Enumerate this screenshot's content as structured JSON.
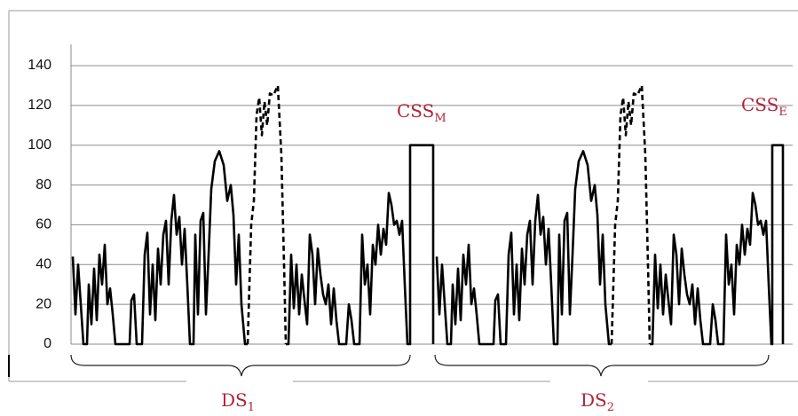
{
  "chart_data": {
    "type": "line",
    "ylim": [
      0,
      140
    ],
    "yticks": [
      0,
      20,
      40,
      60,
      80,
      100,
      120,
      140
    ],
    "grid": true,
    "xlim": [
      80,
      893
    ],
    "annotations": [
      {
        "text": "CSS",
        "sub": "M"
      },
      {
        "text": "CSS",
        "sub": "E"
      },
      {
        "text": "DS",
        "sub": "1"
      },
      {
        "text": "DS",
        "sub": "2"
      }
    ],
    "series": [
      {
        "color": "#000000",
        "dash": false,
        "x": [
          82,
          85,
          88,
          91,
          94,
          98,
          100,
          103,
          106,
          109,
          112,
          115,
          118,
          121,
          124,
          127,
          130,
          137,
          146,
          148,
          151,
          154,
          160,
          163,
          166,
          169,
          172,
          175,
          178,
          181,
          184,
          187,
          190,
          193,
          196,
          199,
          202,
          205,
          208,
          211,
          214,
          218,
          220,
          223,
          226,
          229,
          232,
          235,
          238,
          242,
          247,
          252,
          256,
          260,
          263,
          266,
          269,
          272,
          276,
          279
        ],
        "values": [
          44,
          15,
          40,
          20,
          0,
          0,
          30,
          10,
          38,
          12,
          45,
          30,
          50,
          20,
          28,
          15,
          0,
          0,
          0,
          22,
          25,
          0,
          0,
          45,
          56,
          15,
          40,
          12,
          48,
          30,
          55,
          62,
          30,
          62,
          75,
          55,
          64,
          40,
          58,
          30,
          0,
          0,
          55,
          15,
          62,
          66,
          15,
          45,
          78,
          92,
          97,
          90,
          72,
          80,
          65,
          30,
          55,
          20,
          0,
          0
        ]
      },
      {
        "color": "#000000",
        "dash": true,
        "x": [
          279,
          283,
          286,
          289,
          292,
          295,
          298,
          301,
          304,
          308,
          313,
          317,
          320,
          322
        ],
        "values": [
          0,
          60,
          72,
          115,
          124,
          105,
          122,
          110,
          126,
          125,
          130,
          95,
          40,
          0
        ]
      },
      {
        "color": "#000000",
        "dash": false,
        "x": [
          322,
          325,
          328,
          331,
          334,
          337,
          340,
          343,
          346,
          349,
          352,
          355,
          358,
          361,
          364,
          367,
          370,
          373,
          376,
          379,
          382,
          390,
          393,
          396,
          399,
          405,
          408,
          411,
          414,
          417,
          420,
          423,
          426,
          429,
          432,
          435,
          438,
          441,
          444,
          447,
          450,
          453,
          456,
          459,
          462,
          462,
          488,
          488
        ],
        "values": [
          0,
          0,
          45,
          18,
          40,
          15,
          35,
          22,
          10,
          55,
          45,
          20,
          48,
          35,
          25,
          20,
          30,
          10,
          28,
          12,
          0,
          0,
          20,
          12,
          0,
          0,
          55,
          30,
          40,
          15,
          50,
          40,
          60,
          45,
          58,
          50,
          76,
          70,
          60,
          62,
          55,
          62,
          30,
          0,
          0,
          100,
          100,
          0
        ]
      },
      {
        "color": "#000000",
        "dash": false,
        "x": [
          492,
          495,
          498,
          501,
          504,
          508,
          510,
          513,
          516,
          519,
          522,
          525,
          528,
          531,
          534,
          537,
          540,
          547,
          556,
          558,
          561,
          564,
          570,
          573,
          576,
          579,
          582,
          585,
          588,
          591,
          594,
          597,
          600,
          603,
          606,
          609,
          612,
          615,
          618,
          621,
          624,
          628,
          630,
          633,
          636,
          639,
          642,
          645,
          648,
          652,
          657,
          662,
          666,
          670,
          673,
          676,
          679,
          682,
          686,
          689
        ],
        "values": [
          44,
          15,
          40,
          20,
          0,
          0,
          30,
          10,
          38,
          12,
          45,
          30,
          50,
          20,
          28,
          15,
          0,
          0,
          0,
          22,
          25,
          0,
          0,
          45,
          56,
          15,
          40,
          12,
          48,
          30,
          55,
          62,
          30,
          62,
          75,
          55,
          64,
          40,
          58,
          30,
          0,
          0,
          55,
          15,
          62,
          66,
          15,
          45,
          78,
          92,
          97,
          90,
          72,
          80,
          65,
          30,
          55,
          20,
          0,
          0
        ]
      },
      {
        "color": "#000000",
        "dash": true,
        "x": [
          689,
          693,
          696,
          699,
          702,
          705,
          708,
          711,
          714,
          718,
          723,
          727,
          730,
          732
        ],
        "values": [
          0,
          60,
          72,
          115,
          124,
          105,
          122,
          110,
          126,
          125,
          130,
          95,
          40,
          0
        ]
      },
      {
        "color": "#000000",
        "dash": false,
        "x": [
          732,
          735,
          738,
          741,
          744,
          747,
          750,
          753,
          756,
          759,
          762,
          765,
          768,
          771,
          774,
          777,
          780,
          783,
          786,
          789,
          792,
          800,
          803,
          806,
          809,
          815,
          818,
          821,
          824,
          827,
          830,
          833,
          836,
          839,
          842,
          845,
          848,
          851,
          854,
          857,
          860,
          863,
          866,
          869,
          870,
          870,
          882,
          882
        ],
        "values": [
          0,
          0,
          45,
          18,
          40,
          15,
          35,
          22,
          10,
          55,
          45,
          20,
          48,
          35,
          25,
          20,
          30,
          10,
          28,
          12,
          0,
          0,
          20,
          12,
          0,
          0,
          55,
          30,
          40,
          15,
          50,
          40,
          60,
          45,
          58,
          50,
          76,
          70,
          60,
          62,
          55,
          62,
          30,
          0,
          0,
          100,
          100,
          0
        ]
      }
    ]
  }
}
